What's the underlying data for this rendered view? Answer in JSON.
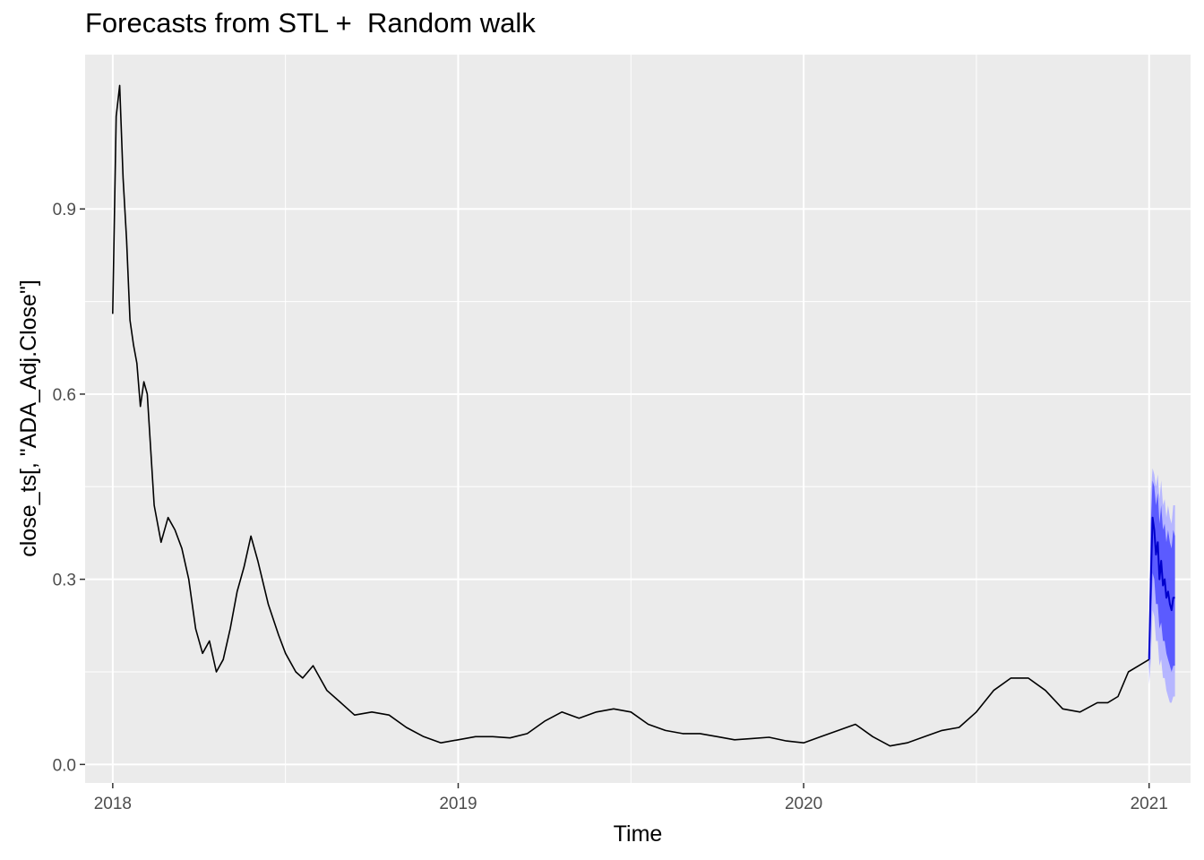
{
  "chart_data": {
    "type": "line",
    "title": "Forecasts from STL +  Random walk",
    "xlabel": "Time",
    "ylabel": "close_ts[, \"ADA_Adj.Close\"]",
    "xlim": [
      2017.92,
      2021.12
    ],
    "ylim": [
      -0.03,
      1.15
    ],
    "x_ticks": [
      2018,
      2019,
      2020,
      2021
    ],
    "x_tick_labels": [
      "2018",
      "2019",
      "2020",
      "2021"
    ],
    "y_ticks": [
      0.0,
      0.3,
      0.6,
      0.9
    ],
    "y_tick_labels": [
      "0.0",
      "0.3",
      "0.6",
      "0.9"
    ],
    "grid": true,
    "series": [
      {
        "role": "observed",
        "color": "#000000",
        "x": [
          2018.0,
          2018.01,
          2018.02,
          2018.03,
          2018.04,
          2018.05,
          2018.06,
          2018.07,
          2018.08,
          2018.09,
          2018.1,
          2018.12,
          2018.14,
          2018.16,
          2018.18,
          2018.2,
          2018.22,
          2018.24,
          2018.26,
          2018.28,
          2018.3,
          2018.32,
          2018.34,
          2018.36,
          2018.38,
          2018.4,
          2018.42,
          2018.45,
          2018.48,
          2018.5,
          2018.53,
          2018.55,
          2018.58,
          2018.62,
          2018.66,
          2018.7,
          2018.75,
          2018.8,
          2018.85,
          2018.9,
          2018.95,
          2019.0,
          2019.05,
          2019.1,
          2019.15,
          2019.2,
          2019.25,
          2019.3,
          2019.35,
          2019.4,
          2019.45,
          2019.5,
          2019.55,
          2019.6,
          2019.65,
          2019.7,
          2019.75,
          2019.8,
          2019.85,
          2019.9,
          2019.95,
          2020.0,
          2020.05,
          2020.1,
          2020.15,
          2020.2,
          2020.25,
          2020.3,
          2020.35,
          2020.4,
          2020.45,
          2020.5,
          2020.55,
          2020.6,
          2020.65,
          2020.7,
          2020.75,
          2020.8,
          2020.85,
          2020.88,
          2020.91,
          2020.94,
          2020.97,
          2021.0
        ],
        "y": [
          0.73,
          1.05,
          1.1,
          0.95,
          0.85,
          0.72,
          0.68,
          0.65,
          0.58,
          0.62,
          0.6,
          0.42,
          0.36,
          0.4,
          0.38,
          0.35,
          0.3,
          0.22,
          0.18,
          0.2,
          0.15,
          0.17,
          0.22,
          0.28,
          0.32,
          0.37,
          0.33,
          0.26,
          0.21,
          0.18,
          0.15,
          0.14,
          0.16,
          0.12,
          0.1,
          0.08,
          0.085,
          0.08,
          0.06,
          0.045,
          0.035,
          0.04,
          0.045,
          0.045,
          0.043,
          0.05,
          0.07,
          0.085,
          0.075,
          0.085,
          0.09,
          0.085,
          0.065,
          0.055,
          0.05,
          0.05,
          0.045,
          0.04,
          0.042,
          0.044,
          0.038,
          0.035,
          0.045,
          0.055,
          0.065,
          0.045,
          0.03,
          0.035,
          0.045,
          0.055,
          0.06,
          0.085,
          0.12,
          0.14,
          0.14,
          0.12,
          0.09,
          0.085,
          0.1,
          0.1,
          0.11,
          0.15,
          0.16,
          0.17
        ]
      },
      {
        "role": "forecast",
        "color": "#0000cc",
        "x": [
          2021.0,
          2021.005,
          2021.01,
          2021.015,
          2021.02,
          2021.025,
          2021.03,
          2021.035,
          2021.04,
          2021.045,
          2021.05,
          2021.055,
          2021.06,
          2021.065,
          2021.07,
          2021.075
        ],
        "y": [
          0.17,
          0.3,
          0.4,
          0.38,
          0.34,
          0.36,
          0.3,
          0.33,
          0.29,
          0.3,
          0.27,
          0.28,
          0.26,
          0.25,
          0.27,
          0.27
        ]
      }
    ],
    "intervals": [
      {
        "level": "80",
        "color": "#5b5bff",
        "lower": [
          0.15,
          0.22,
          0.31,
          0.3,
          0.26,
          0.26,
          0.22,
          0.23,
          0.2,
          0.2,
          0.18,
          0.17,
          0.16,
          0.15,
          0.16,
          0.16
        ],
        "upper": [
          0.2,
          0.39,
          0.46,
          0.45,
          0.42,
          0.44,
          0.39,
          0.42,
          0.38,
          0.39,
          0.36,
          0.38,
          0.36,
          0.35,
          0.38,
          0.37
        ]
      },
      {
        "level": "95",
        "color": "#b6b6ff",
        "lower": [
          0.13,
          0.17,
          0.25,
          0.24,
          0.2,
          0.2,
          0.16,
          0.17,
          0.14,
          0.14,
          0.12,
          0.11,
          0.1,
          0.1,
          0.11,
          0.11
        ],
        "upper": [
          0.22,
          0.44,
          0.48,
          0.47,
          0.45,
          0.47,
          0.43,
          0.46,
          0.42,
          0.43,
          0.4,
          0.42,
          0.4,
          0.39,
          0.42,
          0.42
        ]
      }
    ]
  }
}
